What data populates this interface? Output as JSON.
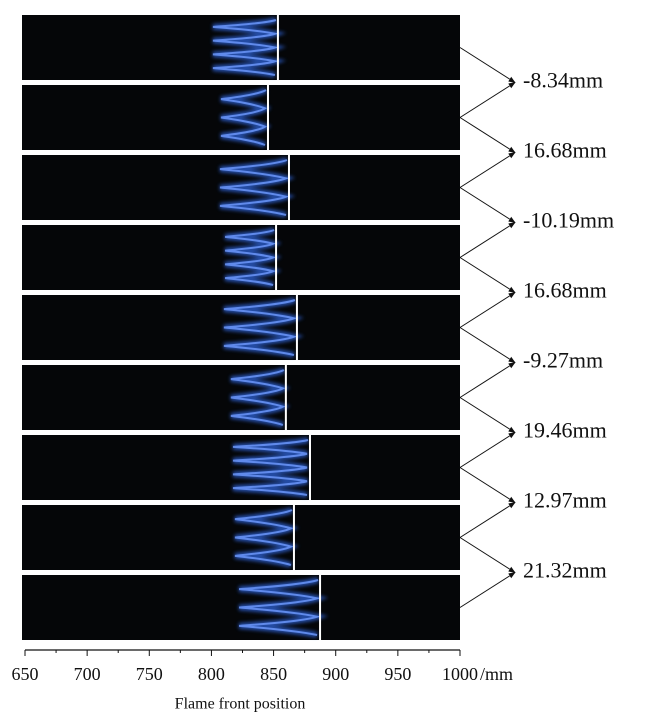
{
  "chart_data": {
    "type": "strip",
    "x_label": "Flame front position",
    "x_unit": "/mm",
    "xlim": [
      650,
      1000
    ],
    "xticks": [
      650,
      700,
      750,
      800,
      850,
      900,
      950,
      1000
    ],
    "front_positions": [
      853.5,
      845.5,
      862.4,
      852,
      868.8,
      859.9,
      879.3,
      866.4,
      887.4
    ],
    "displacements": {
      "values": [
        -8.34,
        16.68,
        -10.19,
        16.68,
        -9.27,
        19.46,
        12.97,
        21.32
      ],
      "value_labels": [
        "-8.34mm",
        "16.68mm",
        "-10.19mm",
        "16.68mm",
        "-9.27mm",
        "19.46mm",
        "12.97mm",
        "21.32mm"
      ]
    }
  }
}
